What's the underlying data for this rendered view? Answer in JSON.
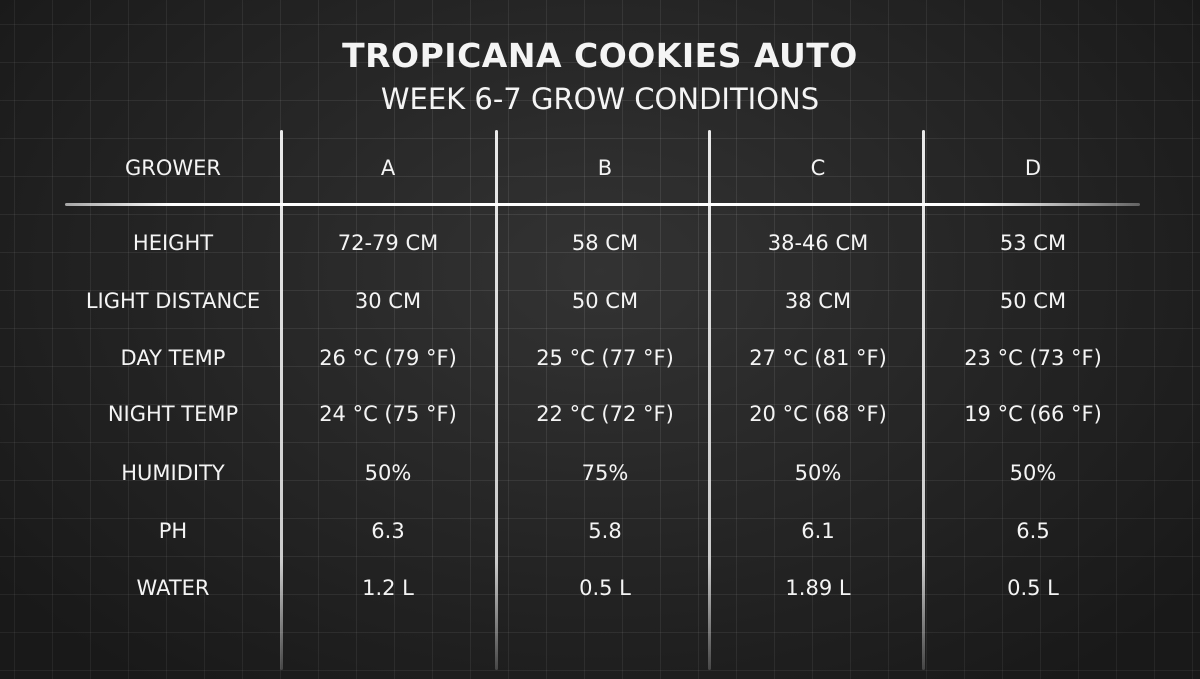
{
  "title": "TROPICANA COOKIES AUTO",
  "subtitle": "WEEK 6-7 GROW CONDITIONS",
  "table": {
    "header": [
      "GROWER",
      "A",
      "B",
      "C",
      "D"
    ],
    "rows": [
      [
        "HEIGHT",
        "72-79 CM",
        "58 CM",
        "38-46 CM",
        "53 CM"
      ],
      [
        "LIGHT DISTANCE",
        "30 CM",
        "50 CM",
        "38 CM",
        "50 CM"
      ],
      [
        "DAY TEMP",
        "26 °C (79 °F)",
        "25 °C (77 °F)",
        "27 °C (81 °F)",
        "23 °C (73 °F)"
      ],
      [
        "NIGHT TEMP",
        "24 °C (75 °F)",
        "22 °C (72 °F)",
        "20 °C (68 °F)",
        "19 °C (66 °F)"
      ],
      [
        "HUMIDITY",
        "50%",
        "75%",
        "50%",
        "50%"
      ],
      [
        "PH",
        "6.3",
        "5.8",
        "6.1",
        "6.5"
      ],
      [
        "WATER",
        "1.2 L",
        "0.5 L",
        "1.89 L",
        "0.5 L"
      ]
    ]
  }
}
